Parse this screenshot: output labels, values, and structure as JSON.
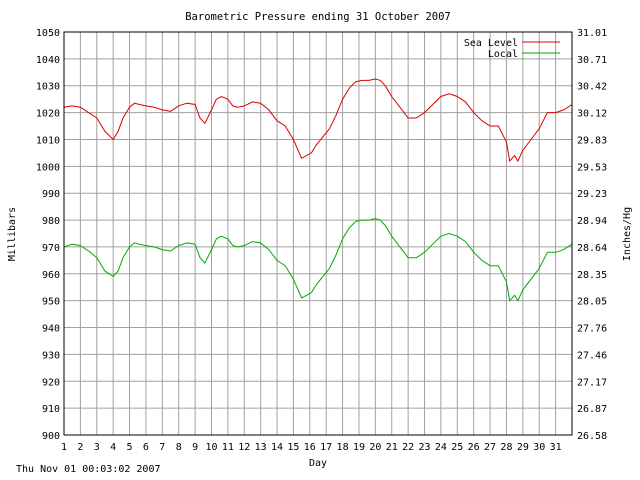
{
  "chart_data": {
    "type": "line",
    "title": "Barometric Pressure ending 31 October 2007",
    "xlabel": "Day",
    "ylabel": "Millibars",
    "y2label": "Inches/Hg",
    "xlim": [
      1,
      32
    ],
    "ylim": [
      900,
      1050
    ],
    "x_ticks": [
      "1",
      "2",
      "3",
      "4",
      "5",
      "6",
      "7",
      "8",
      "9",
      "10",
      "11",
      "12",
      "13",
      "14",
      "15",
      "16",
      "17",
      "18",
      "19",
      "20",
      "21",
      "22",
      "23",
      "24",
      "25",
      "26",
      "27",
      "28",
      "29",
      "30",
      "31"
    ],
    "y_ticks": [
      900,
      910,
      920,
      930,
      940,
      950,
      960,
      970,
      980,
      990,
      1000,
      1010,
      1020,
      1030,
      1040,
      1050
    ],
    "y2_ticks": [
      "26.58",
      "26.87",
      "27.17",
      "27.46",
      "27.76",
      "28.05",
      "28.35",
      "28.64",
      "28.94",
      "29.23",
      "29.53",
      "29.83",
      "30.12",
      "30.42",
      "30.71",
      "31.01"
    ],
    "grid": true,
    "legend_position": "top-right",
    "series": [
      {
        "name": "Sea Level",
        "color": "#dd0000",
        "x": [
          1,
          1.5,
          2,
          2.5,
          3,
          3.5,
          4,
          4.3,
          4.6,
          5,
          5.3,
          5.6,
          6,
          6.5,
          7,
          7.5,
          8,
          8.5,
          9,
          9.3,
          9.6,
          10,
          10.3,
          10.6,
          11,
          11.3,
          11.6,
          12,
          12.5,
          13,
          13.5,
          14,
          14.5,
          15,
          15.5,
          15.8,
          16.1,
          16.4,
          16.8,
          17.2,
          17.6,
          18,
          18.4,
          18.8,
          19.2,
          19.6,
          20,
          20.3,
          20.6,
          21,
          21.5,
          22,
          22.5,
          23,
          23.5,
          24,
          24.5,
          25,
          25.5,
          26,
          26.5,
          27,
          27.5,
          28,
          28.2,
          28.5,
          28.7,
          29,
          29.5,
          30,
          30.5,
          31,
          31.5,
          32
        ],
        "values": [
          1022,
          1022.5,
          1022,
          1020,
          1018,
          1013,
          1010,
          1013,
          1018,
          1022,
          1023.5,
          1023,
          1022.5,
          1022,
          1021,
          1020.5,
          1022.5,
          1023.5,
          1023,
          1018,
          1016,
          1021,
          1025,
          1026,
          1025,
          1022.5,
          1022,
          1022.5,
          1024,
          1023.5,
          1021,
          1017,
          1015,
          1010,
          1003,
          1004,
          1005,
          1008,
          1011,
          1014,
          1019,
          1025,
          1029,
          1031.5,
          1032,
          1032,
          1032.5,
          1032,
          1030,
          1026,
          1022,
          1018,
          1018,
          1020,
          1023,
          1026,
          1027,
          1026,
          1024,
          1020,
          1017,
          1015,
          1015,
          1009,
          1002,
          1004,
          1002,
          1006,
          1010,
          1014,
          1020,
          1020,
          1021,
          1023
        ]
      },
      {
        "name": "Local",
        "color": "#00aa00",
        "x": [
          1,
          1.5,
          2,
          2.5,
          3,
          3.5,
          4,
          4.3,
          4.6,
          5,
          5.3,
          5.6,
          6,
          6.5,
          7,
          7.5,
          8,
          8.5,
          9,
          9.3,
          9.6,
          10,
          10.3,
          10.6,
          11,
          11.3,
          11.6,
          12,
          12.5,
          13,
          13.5,
          14,
          14.5,
          15,
          15.5,
          15.8,
          16.1,
          16.4,
          16.8,
          17.2,
          17.6,
          18,
          18.4,
          18.8,
          19.2,
          19.6,
          20,
          20.3,
          20.6,
          21,
          21.5,
          22,
          22.5,
          23,
          23.5,
          24,
          24.5,
          25,
          25.5,
          26,
          26.5,
          27,
          27.5,
          28,
          28.2,
          28.5,
          28.7,
          29,
          29.5,
          30,
          30.5,
          31,
          31.5,
          32
        ],
        "values": [
          970,
          971,
          970.5,
          968.5,
          966,
          961,
          959,
          961,
          966,
          970,
          971.5,
          971,
          970.5,
          970,
          969,
          968.5,
          970.5,
          971.5,
          971,
          966,
          964,
          969,
          973,
          974,
          973,
          970.5,
          970,
          970.5,
          972,
          971.5,
          969,
          965,
          963,
          958,
          951,
          952,
          953,
          956,
          959,
          962,
          967,
          973,
          977,
          979.5,
          980,
          980,
          980.5,
          980,
          978,
          974,
          970,
          966,
          966,
          968,
          971,
          974,
          975,
          974,
          972,
          968,
          965,
          963,
          963,
          957,
          950,
          952,
          950,
          954,
          958,
          962,
          968,
          968,
          969,
          971
        ]
      }
    ]
  },
  "footer": {
    "timestamp": "Thu Nov 01 00:03:02 2007"
  }
}
